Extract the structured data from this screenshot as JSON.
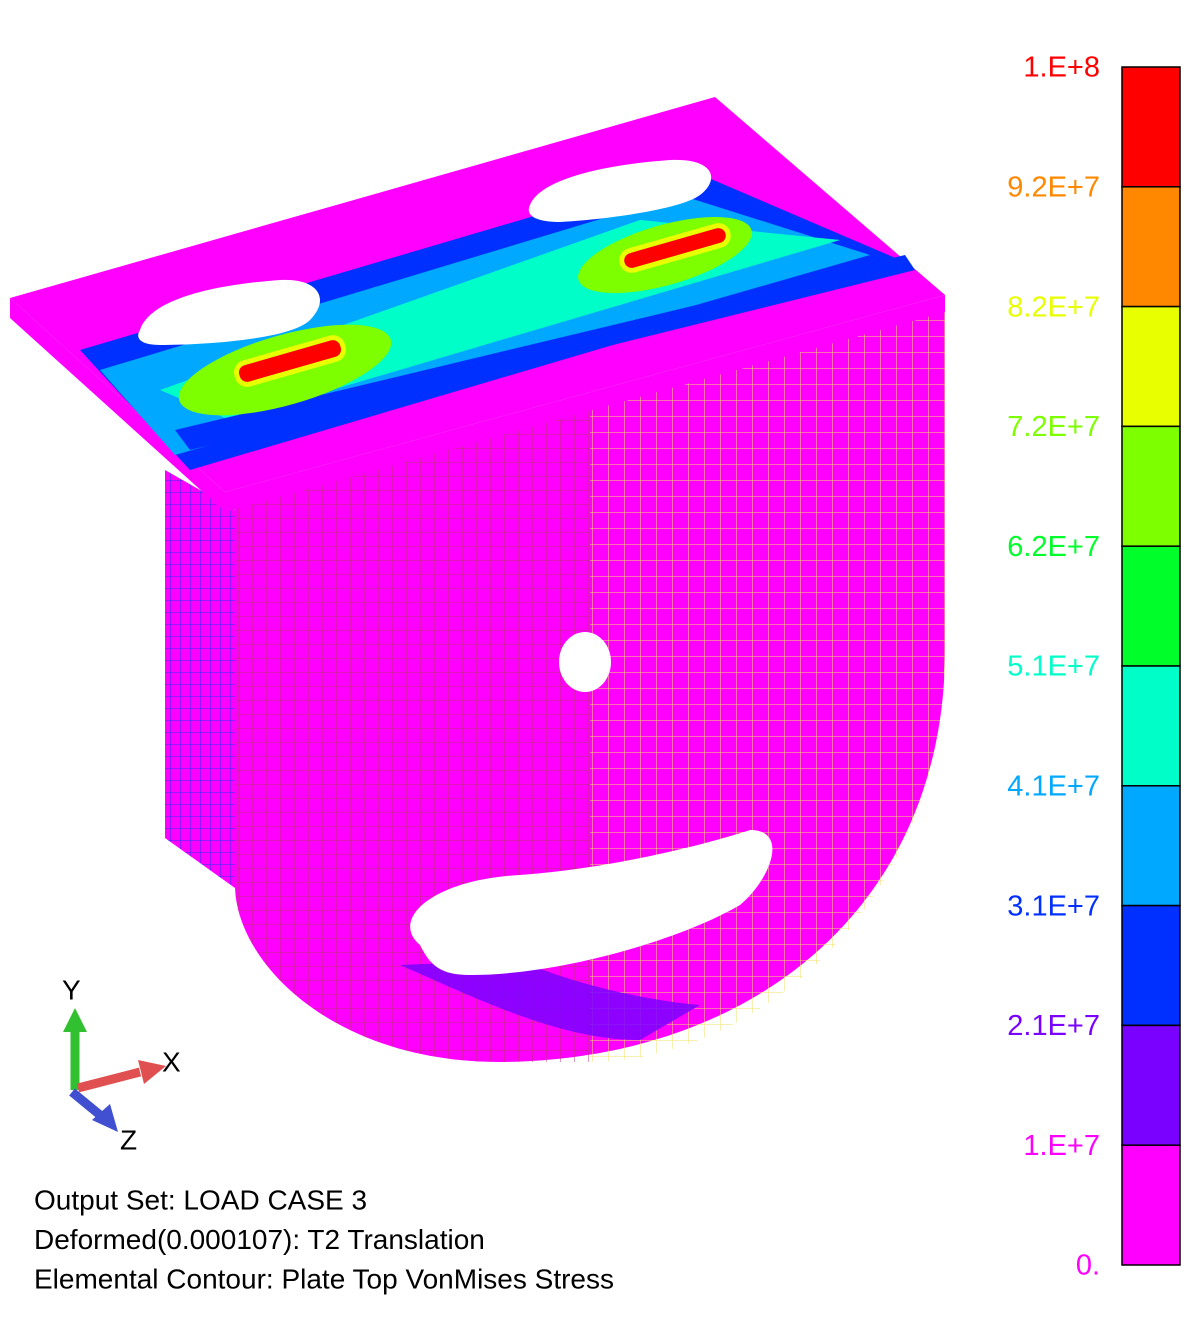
{
  "legend": {
    "labels": [
      "1.E+8",
      "9.2E+7",
      "8.2E+7",
      "7.2E+7",
      "6.2E+7",
      "5.1E+7",
      "4.1E+7",
      "3.1E+7",
      "2.1E+7",
      "1.E+7",
      "0."
    ],
    "colors": [
      "#ff0000",
      "#ff8800",
      "#e8ff00",
      "#7dff00",
      "#00ff2a",
      "#00ffc8",
      "#00a8ff",
      "#0030ff",
      "#7a00ff",
      "#ff00ff"
    ]
  },
  "triad": {
    "y": "Y",
    "x": "X",
    "z": "Z"
  },
  "info": [
    "Output Set: LOAD CASE 3",
    "Deformed(0.000107): T2 Translation",
    "Elemental Contour: Plate Top VonMises Stress"
  ]
}
